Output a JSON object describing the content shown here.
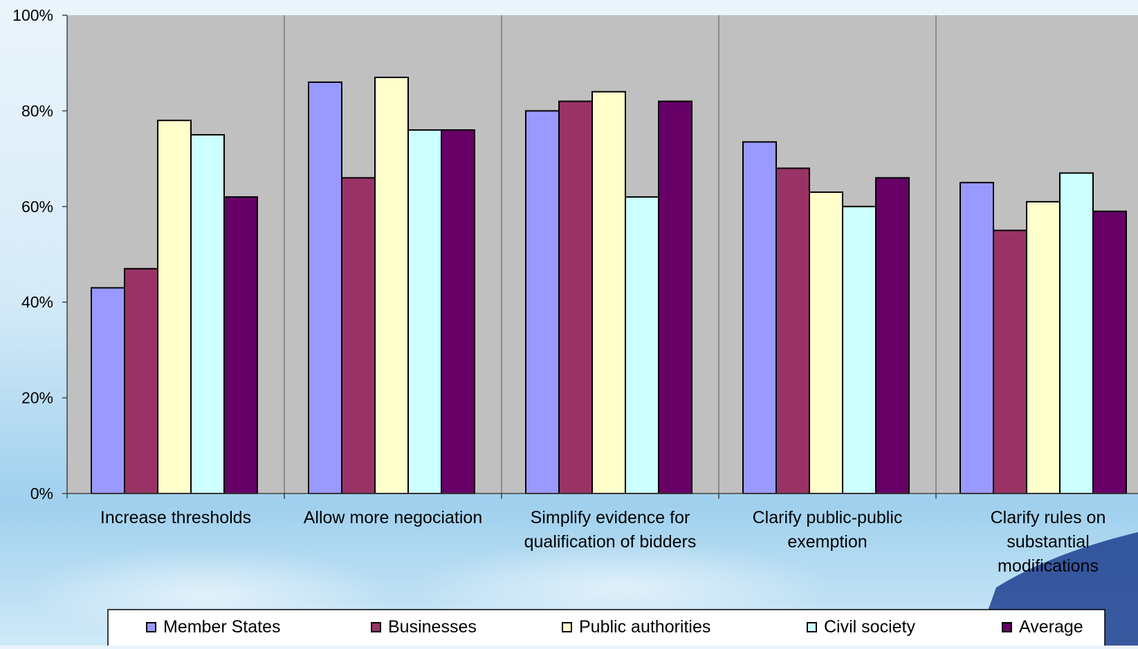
{
  "chart_data": {
    "type": "bar",
    "categories": [
      [
        "Increase thresholds"
      ],
      [
        "Allow more negociation"
      ],
      [
        "Simplify evidence for",
        "qualification of bidders"
      ],
      [
        "Clarify  public-public",
        "exemption"
      ],
      [
        "Clarify rules on",
        "substantial",
        "modifications"
      ]
    ],
    "series": [
      {
        "name": "Member States",
        "color": "#9999ff",
        "values": [
          43,
          86,
          80,
          73.5,
          65
        ]
      },
      {
        "name": "Businesses",
        "color": "#993366",
        "values": [
          47,
          66,
          82,
          68,
          55
        ]
      },
      {
        "name": "Public authorities",
        "color": "#ffffcc",
        "values": [
          78,
          87,
          84,
          63,
          61
        ]
      },
      {
        "name": "Civil society",
        "color": "#ccffff",
        "values": [
          75,
          76,
          62,
          60,
          67
        ]
      },
      {
        "name": "Average",
        "color": "#660066",
        "values": [
          62,
          76,
          82,
          66,
          59
        ]
      }
    ],
    "ylim": [
      0,
      100
    ],
    "yticks": [
      "0%",
      "20%",
      "40%",
      "60%",
      "80%",
      "100%"
    ],
    "plot_background": "#c0c0c0",
    "legend_position": "bottom",
    "grid": false
  }
}
